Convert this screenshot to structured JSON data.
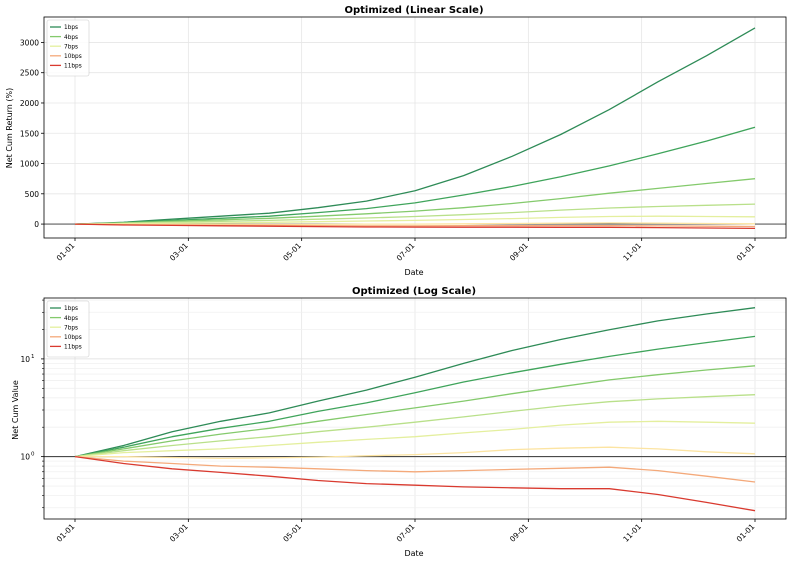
{
  "chart_data": [
    {
      "type": "line",
      "title": "Optimized (Linear Scale)",
      "xlabel": "Date",
      "ylabel": "Net Cum Return (%)",
      "x_tick_labels": [
        "01-01",
        "03-01",
        "05-01",
        "07-01",
        "09-01",
        "11-01",
        "01-01"
      ],
      "y_ticks": [
        0,
        500,
        1000,
        1500,
        2000,
        2500,
        3000
      ],
      "ylim": [
        -230,
        3420
      ],
      "grid": true,
      "legend": "top-left",
      "reference_line": 0,
      "series": [
        {
          "name": "1bps",
          "color": "#2e8b57",
          "legend": true,
          "values": [
            0,
            30,
            80,
            130,
            180,
            270,
            380,
            550,
            800,
            1120,
            1480,
            1890,
            2350,
            2780,
            3240
          ]
        },
        {
          "name": "",
          "color": "#3fa45b",
          "legend": false,
          "values": [
            0,
            25,
            60,
            95,
            130,
            190,
            255,
            350,
            480,
            620,
            780,
            960,
            1160,
            1370,
            1600
          ]
        },
        {
          "name": "4bps",
          "color": "#84ca6c",
          "legend": true,
          "values": [
            0,
            20,
            45,
            70,
            95,
            130,
            170,
            215,
            270,
            340,
            420,
            510,
            590,
            670,
            750
          ]
        },
        {
          "name": "",
          "color": "#b9e08a",
          "legend": false,
          "values": [
            0,
            15,
            30,
            45,
            60,
            80,
            100,
            125,
            155,
            190,
            230,
            265,
            290,
            310,
            330
          ]
        },
        {
          "name": "7bps",
          "color": "#e4ef9e",
          "legend": true,
          "values": [
            0,
            10,
            15,
            20,
            30,
            40,
            50,
            60,
            75,
            90,
            110,
            125,
            130,
            125,
            120
          ]
        },
        {
          "name": "",
          "color": "#fce4a2",
          "legend": false,
          "values": [
            0,
            0,
            -5,
            -5,
            -5,
            -5,
            0,
            0,
            5,
            10,
            15,
            20,
            15,
            10,
            5
          ]
        },
        {
          "name": "10bps",
          "color": "#f4a97a",
          "legend": true,
          "values": [
            0,
            -10,
            -15,
            -20,
            -20,
            -25,
            -30,
            -30,
            -25,
            -25,
            -25,
            -25,
            -30,
            -35,
            -40
          ]
        },
        {
          "name": "11bps",
          "color": "#d93a2f",
          "legend": true,
          "values": [
            0,
            -15,
            -22,
            -28,
            -35,
            -42,
            -48,
            -50,
            -51,
            -52,
            -54,
            -53,
            -58,
            -65,
            -72
          ]
        }
      ]
    },
    {
      "type": "line",
      "title": "Optimized (Log Scale)",
      "xlabel": "Date",
      "ylabel": "Net Cum Value",
      "x_tick_labels": [
        "01-01",
        "03-01",
        "05-01",
        "07-01",
        "09-01",
        "11-01",
        "01-01"
      ],
      "y_tick_labels": [
        "10^0",
        "10^1"
      ],
      "y_ticks": [
        1,
        10
      ],
      "ylim": [
        0.23,
        42
      ],
      "y_scale": "log",
      "grid": true,
      "legend": "top-left",
      "reference_line": 1,
      "series": [
        {
          "name": "1bps",
          "color": "#2e8b57",
          "legend": true,
          "values": [
            1.0,
            1.3,
            1.8,
            2.3,
            2.8,
            3.7,
            4.8,
            6.5,
            9.0,
            12.2,
            15.8,
            19.9,
            24.5,
            28.8,
            33.4
          ]
        },
        {
          "name": "",
          "color": "#3fa45b",
          "legend": false,
          "values": [
            1.0,
            1.25,
            1.6,
            1.95,
            2.3,
            2.9,
            3.55,
            4.5,
            5.8,
            7.2,
            8.8,
            10.6,
            12.6,
            14.7,
            17.0
          ]
        },
        {
          "name": "4bps",
          "color": "#84ca6c",
          "legend": true,
          "values": [
            1.0,
            1.2,
            1.45,
            1.7,
            1.95,
            2.3,
            2.7,
            3.15,
            3.7,
            4.4,
            5.2,
            6.1,
            6.9,
            7.7,
            8.5
          ]
        },
        {
          "name": "",
          "color": "#b9e08a",
          "legend": false,
          "values": [
            1.0,
            1.15,
            1.3,
            1.45,
            1.6,
            1.8,
            2.0,
            2.25,
            2.55,
            2.9,
            3.3,
            3.65,
            3.9,
            4.1,
            4.3
          ]
        },
        {
          "name": "7bps",
          "color": "#e4ef9e",
          "legend": true,
          "values": [
            1.0,
            1.1,
            1.15,
            1.2,
            1.3,
            1.4,
            1.5,
            1.6,
            1.75,
            1.9,
            2.1,
            2.25,
            2.3,
            2.25,
            2.2
          ]
        },
        {
          "name": "",
          "color": "#fce4a2",
          "legend": false,
          "values": [
            1.0,
            1.0,
            0.98,
            0.96,
            0.97,
            0.99,
            1.02,
            1.05,
            1.1,
            1.18,
            1.22,
            1.25,
            1.2,
            1.12,
            1.07
          ]
        },
        {
          "name": "10bps",
          "color": "#f4a97a",
          "legend": true,
          "values": [
            1.0,
            0.9,
            0.85,
            0.8,
            0.78,
            0.75,
            0.72,
            0.7,
            0.72,
            0.74,
            0.76,
            0.78,
            0.72,
            0.63,
            0.55
          ]
        },
        {
          "name": "11bps",
          "color": "#d93a2f",
          "legend": true,
          "values": [
            1.0,
            0.85,
            0.75,
            0.69,
            0.63,
            0.57,
            0.53,
            0.51,
            0.49,
            0.48,
            0.47,
            0.47,
            0.41,
            0.34,
            0.28
          ]
        }
      ]
    }
  ]
}
